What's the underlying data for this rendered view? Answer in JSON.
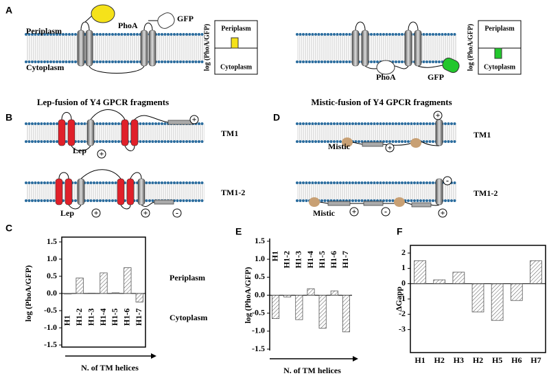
{
  "panel_labels": [
    "A",
    "B",
    "C",
    "D",
    "E",
    "F"
  ],
  "panel_a": {
    "left": {
      "periplasm": "Periplasm",
      "cytoplasm": "Cytoplasm",
      "phoa": "PhoA",
      "gfp": "GFP",
      "inset_ylabel": "log (PhoA/GFP)",
      "inset_top": "Periplasm",
      "inset_bottom": "Cytoplasm"
    },
    "right": {
      "phoa": "PhoA",
      "gfp": "GFP",
      "inset_ylabel": "log (PhoA/GFP)",
      "inset_top": "Periplasm",
      "inset_bottom": "Cytoplasm"
    }
  },
  "panel_b": {
    "title": "Lep-fusion of Y4 GPCR fragments",
    "constructs": [
      {
        "name": "TM1",
        "fusion": "Lep",
        "charges": [
          "+",
          "+"
        ]
      },
      {
        "name": "TM1-2",
        "fusion": "Lep",
        "charges": [
          "+",
          "+",
          "-"
        ]
      }
    ]
  },
  "panel_d": {
    "title": "Mistic-fusion of Y4 GPCR fragments",
    "constructs": [
      {
        "name": "TM1",
        "fusion": "Mistic",
        "charges": [
          "+",
          "+"
        ]
      },
      {
        "name": "TM1-2",
        "fusion": "Mistic",
        "charges": [
          "+",
          "-",
          "+",
          "-"
        ]
      }
    ]
  },
  "chart_data": [
    {
      "type": "bar",
      "ylabel": "log (PhoA/GFP)",
      "xlabel": "N. of TM helices",
      "annotations": [
        "Periplasm",
        "Cytoplasm"
      ],
      "categories": [
        "H1",
        "H1-2",
        "H1-3",
        "H1-4",
        "H1-5",
        "H1-6",
        "H1-7"
      ],
      "values": [
        0,
        0.45,
        0.01,
        0.6,
        0.02,
        0.75,
        -0.25
      ],
      "color": "#555555",
      "ylim": [
        -1.5,
        1.5
      ],
      "yticks": [
        -1.5,
        {
          "value": -1,
          "label": "-1.0"
        },
        -0.5,
        {
          "value": 0,
          "label": "0.0"
        },
        0.5,
        {
          "value": 1,
          "label": "1.0"
        },
        1.5
      ]
    },
    {
      "type": "bar",
      "ylabel": "log (PhoA/GFP)",
      "xlabel": "N. of TM helices",
      "categories": [
        "H1",
        "H1-2",
        "H1-3",
        "H1-4",
        "H1-5",
        "H1-6",
        "H1-7"
      ],
      "values": [
        -0.65,
        -0.05,
        -0.68,
        0.18,
        -0.92,
        0.12,
        -1.02
      ],
      "color": "#555555",
      "ylim": [
        -1.5,
        1.5
      ],
      "yticks": [
        -1.5,
        {
          "value": -1,
          "label": "-1.0"
        },
        -0.5,
        {
          "value": 0,
          "label": "0.0"
        },
        0.5,
        {
          "value": 1,
          "label": "1.0"
        },
        1.5
      ]
    },
    {
      "type": "bar",
      "ylabel": "ΔGapp",
      "categories": [
        "H1",
        "H2",
        "H3",
        "H2",
        "H5",
        "H6",
        "H7"
      ],
      "values": [
        1.5,
        0.25,
        0.75,
        -1.85,
        -2.4,
        -1.1,
        1.5
      ],
      "color": "#555555",
      "ylim": [
        -4.5,
        2.5
      ],
      "yticks": [
        -3,
        -2,
        -1,
        0,
        1,
        2
      ]
    }
  ]
}
